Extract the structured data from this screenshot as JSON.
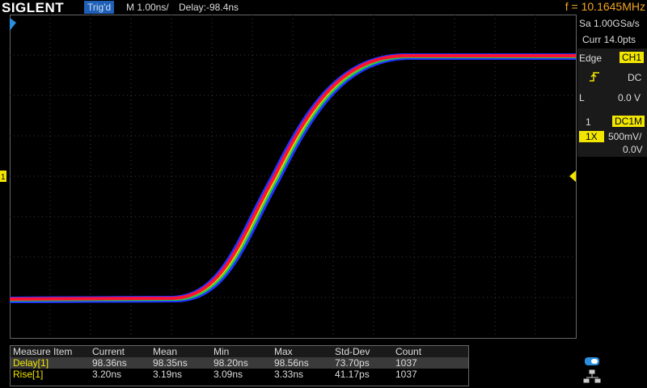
{
  "header": {
    "brand": "SIGLENT",
    "status": "Trig'd",
    "timebase": "M 1.00ns/",
    "delay": "Delay:-98.4ns",
    "frequency": "f = 10.1645MHz"
  },
  "panel": {
    "sample_rate": "Sa 1.00GSa/s",
    "points": "Curr 14.0pts",
    "trigger_type": "Edge",
    "trigger_source": "CH1",
    "coupling": "DC",
    "level_label": "L",
    "level": "0.0 V",
    "channel": "1",
    "impedance": "DC1M",
    "probe": "1X",
    "scale": "500mV/",
    "offset": "0.0V"
  },
  "plot": {
    "channel_marker": "1"
  },
  "table": {
    "header": [
      "Measure Item",
      "Current",
      "Mean",
      "Min",
      "Max",
      "Std-Dev",
      "Count"
    ],
    "rows": [
      [
        "Delay[1]",
        "98.36ns",
        "98.35ns",
        "98.20ns",
        "98.56ns",
        "73.70ps",
        "1037"
      ],
      [
        "Rise[1]",
        "3.20ns",
        "3.19ns",
        "3.09ns",
        "3.33ns",
        "41.17ps",
        "1037"
      ]
    ]
  }
}
